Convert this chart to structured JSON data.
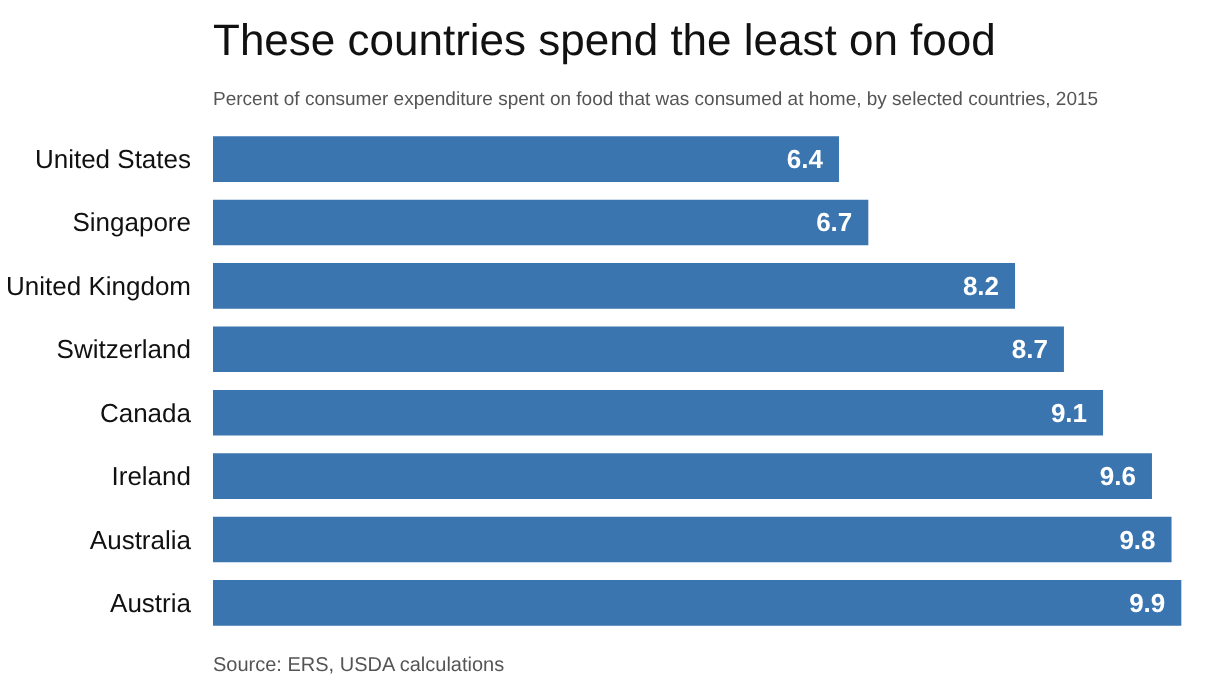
{
  "chart_data": {
    "type": "bar",
    "orientation": "horizontal",
    "title": "These countries spend the least on food",
    "subtitle": "Percent of consumer expenditure spent on food that was consumed at home, by selected countries, 2015",
    "categories": [
      "United States",
      "Singapore",
      "United Kingdom",
      "Switzerland",
      "Canada",
      "Ireland",
      "Australia",
      "Austria"
    ],
    "values": [
      6.4,
      6.7,
      8.2,
      8.7,
      9.1,
      9.6,
      9.8,
      9.9
    ],
    "color": "#3a75b0",
    "data_labels": true,
    "tick_labels": "y",
    "grid": false,
    "annotations": [
      "Source: ERS, USDA calculations"
    ]
  }
}
